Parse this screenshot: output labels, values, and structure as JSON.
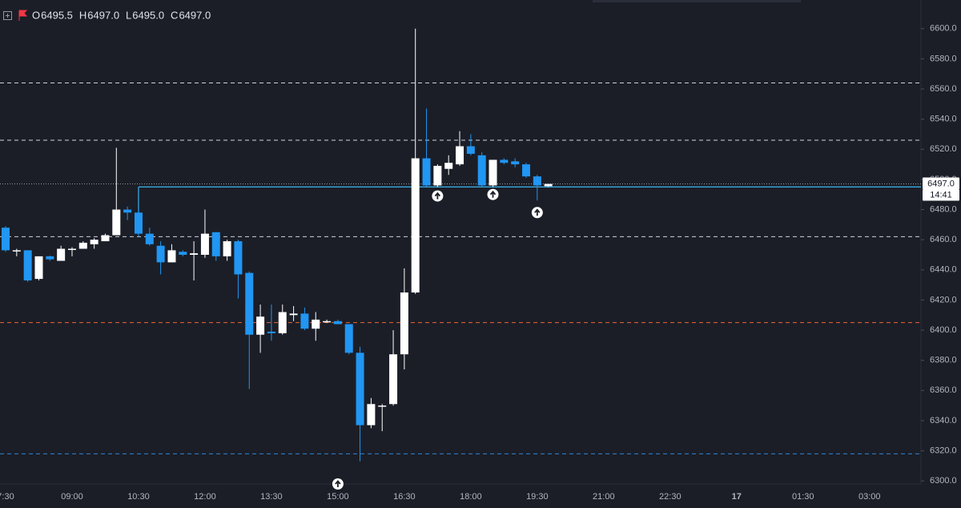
{
  "chart_data": {
    "type": "candlestick",
    "legend": [
      {
        "label": "O",
        "value": "6495.5"
      },
      {
        "label": "H",
        "value": "6497.0"
      },
      {
        "label": "L",
        "value": "6495.0"
      },
      {
        "label": "C",
        "value": "6497.0"
      }
    ],
    "categories": [
      "7:30",
      null,
      null,
      null,
      null,
      null,
      "09:00",
      null,
      null,
      null,
      null,
      null,
      "10:30",
      null,
      null,
      null,
      null,
      null,
      "12:00",
      null,
      null,
      null,
      null,
      null,
      "13:30",
      null,
      null,
      null,
      null,
      null,
      "15:00",
      null,
      null,
      null,
      null,
      null,
      "16:30",
      null,
      null,
      null,
      null,
      null,
      "18:00",
      null,
      null,
      null,
      null,
      null,
      "19:30",
      null,
      null,
      null,
      null,
      null,
      "21:00",
      null,
      null,
      null,
      null,
      null,
      "22:30",
      null,
      null,
      null,
      null,
      null,
      "17",
      null,
      null,
      null,
      null,
      null,
      "01:30",
      null,
      null,
      null,
      null,
      null,
      "03:00",
      null,
      null,
      null,
      null
    ],
    "open": [
      6468,
      6453,
      6453,
      6434,
      6449,
      6446,
      6454,
      6454,
      6457,
      6459,
      6463,
      6480,
      6478,
      6464,
      6456,
      6445,
      6452,
      6450,
      6450,
      6465,
      6449,
      6459,
      6438,
      6397,
      6399,
      6398,
      6410,
      6411,
      6401,
      6406,
      6406,
      6404,
      6385,
      6337,
      6350,
      6351,
      6384,
      6425,
      6514,
      6496,
      6507,
      6510,
      6522,
      6516,
      6496,
      6513,
      6512,
      6510,
      6502,
      6495.5,
      null,
      null,
      null,
      null,
      null,
      null,
      null,
      null,
      null,
      null,
      null,
      null,
      null,
      null,
      null,
      null,
      null,
      null,
      null,
      null,
      null,
      null,
      null,
      null,
      null,
      null,
      null,
      null,
      null,
      null,
      null,
      null,
      null
    ],
    "high": [
      6469,
      6454,
      6453,
      6449,
      6449.5,
      6456,
      6455,
      6459,
      6461,
      6464,
      6521,
      6482,
      6480,
      6468,
      6459,
      6457,
      6453,
      6459,
      6480,
      6465,
      6460,
      6460,
      6439,
      6417,
      6417,
      6417,
      6416,
      6415,
      6412,
      6407,
      6407,
      6404,
      6389,
      6355,
      6351,
      6400,
      6441,
      6600,
      6547,
      6510,
      6516,
      6532,
      6530,
      6518,
      6513,
      6514,
      6514,
      6511,
      6503,
      6497,
      null,
      null,
      null,
      null,
      null,
      null,
      null,
      null,
      null,
      null,
      null,
      null,
      null,
      null,
      null,
      null,
      null,
      null,
      null,
      null,
      null,
      null,
      null,
      null,
      null,
      null,
      null,
      null,
      null,
      null,
      null,
      null,
      null
    ],
    "low": [
      6452,
      6449,
      6432,
      6433,
      6446,
      6446,
      6449,
      6454,
      6454,
      6459,
      6463,
      6473,
      6462,
      6456,
      6437,
      6445,
      6449,
      6433,
      6448,
      6446,
      6446,
      6421,
      6361,
      6385,
      6393,
      6397,
      6406,
      6400,
      6393,
      6405,
      6404,
      6384,
      6313,
      6335,
      6333,
      6350,
      6374,
      6424,
      6495,
      6495,
      6503,
      6509,
      6516,
      6495,
      6495,
      6510,
      6508,
      6501,
      6486,
      6495,
      null,
      null,
      null,
      null,
      null,
      null,
      null,
      null,
      null,
      null,
      null,
      null,
      null,
      null,
      null,
      null,
      null,
      null,
      null,
      null,
      null,
      null,
      null,
      null,
      null,
      null,
      null,
      null,
      null,
      null,
      null,
      null,
      null
    ],
    "close": [
      6453,
      6453,
      6433,
      6449,
      6447,
      6454,
      6454,
      6458,
      6460,
      6463,
      6480,
      6478,
      6464,
      6457,
      6445,
      6453,
      6450,
      6451,
      6464,
      6449,
      6459,
      6437,
      6397,
      6409,
      6398,
      6412,
      6411,
      6401,
      6407,
      6406,
      6404,
      6385,
      6337,
      6351,
      6350,
      6384,
      6425,
      6514,
      6496,
      6509,
      6511,
      6522,
      6517,
      6496,
      6513,
      6511,
      6510,
      6502,
      6496,
      6497,
      null,
      null,
      null,
      null,
      null,
      null,
      null,
      null,
      null,
      null,
      null,
      null,
      null,
      null,
      null,
      null,
      null,
      null,
      null,
      null,
      null,
      null,
      null,
      null,
      null,
      null,
      null,
      null,
      null,
      null,
      null,
      null,
      null
    ],
    "up_color": "#ffffff",
    "down_color": "#2196f3",
    "ylim": [
      6298,
      6619
    ],
    "yticks": [
      {
        "value": 6300,
        "label": "6300.0"
      },
      {
        "value": 6320,
        "label": "6320.0"
      },
      {
        "value": 6340,
        "label": "6340.0"
      },
      {
        "value": 6360,
        "label": "6360.0"
      },
      {
        "value": 6380,
        "label": "6380.0"
      },
      {
        "value": 6400,
        "label": "6400.0"
      },
      {
        "value": 6420,
        "label": "6420.0"
      },
      {
        "value": 6440,
        "label": "6440.0"
      },
      {
        "value": 6460,
        "label": "6460.0"
      },
      {
        "value": 6480,
        "label": "6480.0"
      },
      {
        "value": 6500,
        "label": "6500.0"
      },
      {
        "value": 6520,
        "label": "6520.0"
      },
      {
        "value": 6540,
        "label": "6540.0"
      },
      {
        "value": 6560,
        "label": "6560.0"
      },
      {
        "value": 6580,
        "label": "6580.0"
      },
      {
        "value": 6600,
        "label": "6600.0"
      }
    ],
    "grid": false,
    "levels": [
      {
        "value": 6564,
        "color": "#d1d4dc",
        "style": "dashed"
      },
      {
        "value": 6526,
        "color": "#d1d4dc",
        "style": "dashed"
      },
      {
        "value": 6462,
        "color": "#d1d4dc",
        "style": "dashed"
      },
      {
        "value": 6405,
        "color": "#f0652f",
        "style": "dashed"
      },
      {
        "value": 6318,
        "color": "#2f86d6",
        "style": "dashed"
      },
      {
        "value": 6495,
        "color": "#38a8e0",
        "style": "solid"
      }
    ],
    "price_line": {
      "value": 6497,
      "label": "6497.0",
      "countdown": "14:41"
    },
    "markers": {
      "indices": [
        30,
        39,
        44,
        48
      ],
      "values": [
        6298,
        6489,
        6490,
        6478
      ]
    }
  }
}
